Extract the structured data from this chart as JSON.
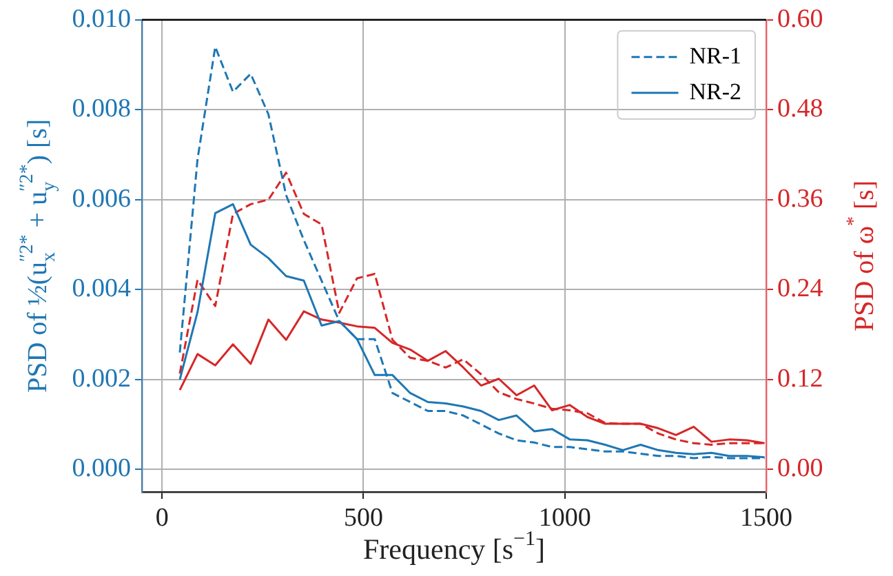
{
  "chart_data": {
    "type": "line",
    "xlabel": "Frequency [s$^{−1}$]",
    "ylabel": "PSD of ½(u$_{x}$$^{″2*}$ + u$_{y}$$^{″2*}$) [s]",
    "y2label": "PSD of ω$^{*}$ [s]",
    "x": [
      44,
      88,
      132,
      176,
      220,
      264,
      308,
      352,
      396,
      440,
      484,
      528,
      572,
      616,
      660,
      704,
      748,
      792,
      836,
      880,
      924,
      968,
      1012,
      1056,
      1100,
      1144,
      1188,
      1232,
      1276,
      1320,
      1364,
      1408,
      1452,
      1496
    ],
    "series": [
      {
        "name": "NR-1",
        "color": "#1f77b4",
        "line_style": "dashed",
        "values": [
          0.0026,
          0.0069,
          0.0094,
          0.0084,
          0.0088,
          0.0079,
          0.0061,
          0.0051,
          0.0042,
          0.0033,
          0.0029,
          0.0029,
          0.0017,
          0.0015,
          0.0013,
          0.0013,
          0.0012,
          0.001,
          0.0008,
          0.00065,
          0.0006,
          0.0005,
          0.0005,
          0.00045,
          0.0004,
          0.0004,
          0.00035,
          0.0003,
          0.0003,
          0.00025,
          0.00028,
          0.00025,
          0.00025,
          0.00025
        ]
      },
      {
        "name": "NR-2",
        "color": "#1f77b4",
        "line_style": "solid",
        "values": [
          0.002,
          0.0035,
          0.0057,
          0.0059,
          0.005,
          0.0047,
          0.0043,
          0.0042,
          0.0032,
          0.0033,
          0.0029,
          0.0021,
          0.0021,
          0.0017,
          0.0015,
          0.00147,
          0.0014,
          0.0013,
          0.0011,
          0.0012,
          0.00085,
          0.0009,
          0.00067,
          0.00065,
          0.00055,
          0.00043,
          0.00055,
          0.00043,
          0.00037,
          0.00034,
          0.00037,
          0.0003,
          0.0003,
          0.00027
        ]
      },
      {
        "color": "#d62728",
        "line_style": "dashed",
        "axis": "y2",
        "values": [
          0.128,
          0.253,
          0.218,
          0.341,
          0.354,
          0.36,
          0.396,
          0.341,
          0.327,
          0.209,
          0.255,
          0.261,
          0.173,
          0.149,
          0.145,
          0.136,
          0.147,
          0.127,
          0.103,
          0.094,
          0.088,
          0.081,
          0.079,
          0.075,
          0.062,
          0.061,
          0.061,
          0.048,
          0.04,
          0.035,
          0.033,
          0.035,
          0.035,
          0.035
        ]
      },
      {
        "color": "#d62728",
        "line_style": "solid",
        "axis": "y2",
        "values": [
          0.106,
          0.154,
          0.139,
          0.167,
          0.141,
          0.2,
          0.173,
          0.211,
          0.2,
          0.196,
          0.191,
          0.189,
          0.169,
          0.16,
          0.145,
          0.158,
          0.136,
          0.112,
          0.121,
          0.099,
          0.112,
          0.079,
          0.086,
          0.07,
          0.061,
          0.061,
          0.061,
          0.055,
          0.046,
          0.057,
          0.037,
          0.04,
          0.039,
          0.035
        ]
      }
    ],
    "xlim": [
      -50,
      1500
    ],
    "xticks": [
      0,
      500,
      1000,
      1500
    ],
    "ylim": [
      -0.0005,
      0.01
    ],
    "yticks": [
      {
        "value": 0,
        "label": "0.000"
      },
      {
        "value": 0.002,
        "label": "0.002"
      },
      {
        "value": 0.004,
        "label": "0.004"
      },
      {
        "value": 0.006,
        "label": "0.006"
      },
      {
        "value": 0.008,
        "label": "0.008"
      },
      {
        "value": 0.01,
        "label": "0.010"
      }
    ],
    "y2lim": [
      -0.03,
      0.6
    ],
    "y2ticks": [
      {
        "value": 0,
        "label": "0.00"
      },
      {
        "value": 0.12,
        "label": "0.12"
      },
      {
        "value": 0.24,
        "label": "0.24"
      },
      {
        "value": 0.36,
        "label": "0.36"
      },
      {
        "value": 0.48,
        "label": "0.48"
      },
      {
        "value": 0.6,
        "label": "0.60"
      }
    ],
    "grid": true,
    "legend": "top right",
    "marker": "none"
  }
}
